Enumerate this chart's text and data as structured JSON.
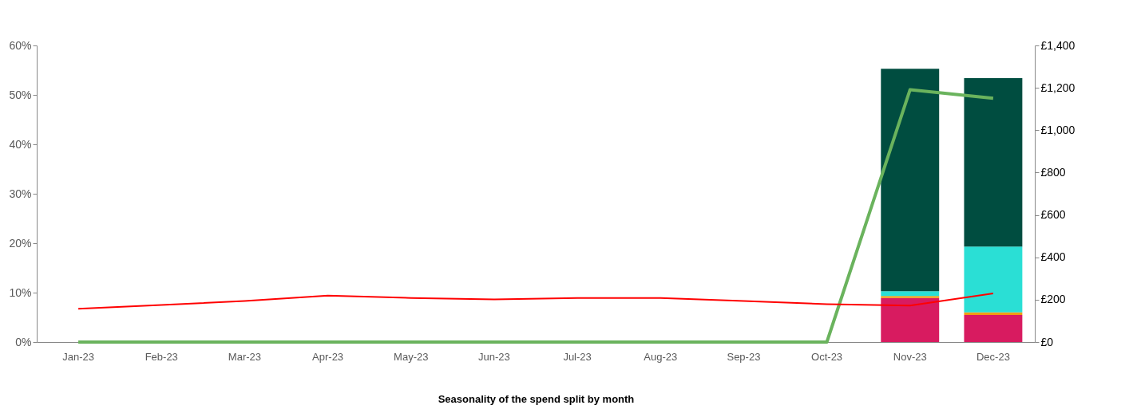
{
  "chart_data": {
    "type": "bar",
    "stacked": true,
    "xlabel": "Seasonality of the spend split by month",
    "categories": [
      "Jan-23",
      "Feb-23",
      "Mar-23",
      "Apr-23",
      "May-23",
      "Jun-23",
      "Jul-23",
      "Aug-23",
      "Sep-23",
      "Oct-23",
      "Nov-23",
      "Dec-23"
    ],
    "series": [
      {
        "color": "#d81b60",
        "values": [
          null,
          null,
          null,
          null,
          null,
          null,
          null,
          null,
          null,
          null,
          8.9,
          5.5
        ]
      },
      {
        "color": "#f39c12",
        "values": [
          null,
          null,
          null,
          null,
          null,
          null,
          null,
          null,
          null,
          null,
          0.4,
          0.5
        ]
      },
      {
        "color": "#2adfd5",
        "values": [
          null,
          null,
          null,
          null,
          null,
          null,
          null,
          null,
          null,
          null,
          1.0,
          13.3
        ]
      },
      {
        "color": "#004d40",
        "values": [
          null,
          null,
          null,
          null,
          null,
          null,
          null,
          null,
          null,
          null,
          45.0,
          34.1
        ]
      },
      {
        "type": "line",
        "axis": "y2",
        "color": "#6ab35d",
        "values": [
          0,
          0,
          0,
          0,
          0,
          0,
          0,
          0,
          0,
          0,
          1191,
          1151
        ]
      },
      {
        "type": "line",
        "axis": "y2",
        "color": "#ff0000",
        "values": [
          157,
          175,
          194,
          219,
          208,
          201,
          208,
          208,
          194,
          179,
          172,
          230
        ]
      }
    ],
    "ylim": [
      0,
      60
    ],
    "yticks": [
      {
        "value": 0,
        "label": "0%"
      },
      {
        "value": 10,
        "label": "10%"
      },
      {
        "value": 20,
        "label": "20%"
      },
      {
        "value": 30,
        "label": "30%"
      },
      {
        "value": 40,
        "label": "40%"
      },
      {
        "value": 50,
        "label": "50%"
      },
      {
        "value": 60,
        "label": "60%"
      }
    ],
    "y2lim": [
      0,
      1400
    ],
    "y2ticks": [
      {
        "value": 0,
        "label": "£0"
      },
      {
        "value": 200,
        "label": "£200"
      },
      {
        "value": 400,
        "label": "£400"
      },
      {
        "value": 600,
        "label": "£600"
      },
      {
        "value": 800,
        "label": "£800"
      },
      {
        "value": 1000,
        "label": "£1,000"
      },
      {
        "value": 1200,
        "label": "£1,200"
      },
      {
        "value": 1400,
        "label": "£1,400"
      }
    ],
    "grid": false,
    "legend": false,
    "marker": "none",
    "line_style": "solid"
  }
}
